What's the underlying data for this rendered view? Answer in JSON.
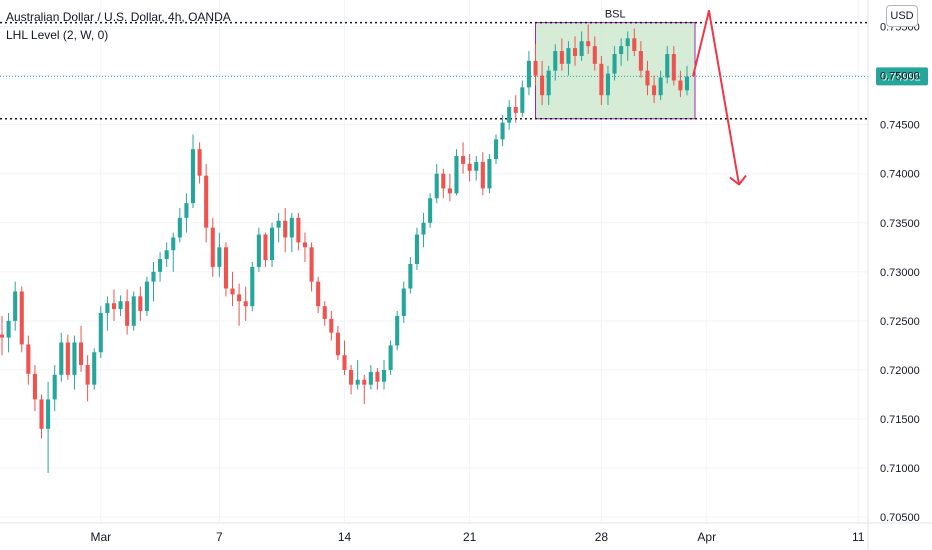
{
  "header": {
    "title": "Australian Dollar / U.S. Dollar, 4h, OANDA",
    "indicator": "LHL Level (2, W, 0)"
  },
  "currency_button": "USD",
  "colors": {
    "up": "#26a69a",
    "down": "#ef5350",
    "zone_fill": "#c8e6c9",
    "zone_border": "#9c27b0",
    "price_line": "#26a69a",
    "level_line": "#131722",
    "arrow": "#f23645",
    "grid": "#f0f3fa"
  },
  "chart_data": {
    "type": "candlestick",
    "symbol": "Australian Dollar / U.S. Dollar",
    "interval": "4h",
    "source": "OANDA",
    "y_axis_ticks": [
      "0.75500",
      "0.75000",
      "0.74500",
      "0.74000",
      "0.73500",
      "0.73000",
      "0.72500",
      "0.72000",
      "0.71500",
      "0.71000",
      "0.70500"
    ],
    "ylim": [
      0.7044,
      0.7575
    ],
    "x_axis_ticks": [
      "Mar",
      "7",
      "14",
      "21",
      "28",
      "Apr",
      "11"
    ],
    "current_price": "0.74992",
    "levels": [
      0.7554,
      0.7456
    ],
    "zone": {
      "label": "BSL",
      "top": 0.7554,
      "bottom": 0.7456
    },
    "projection_points": [
      [
        0.74992
      ],
      [
        0.7566
      ],
      [
        0.7389
      ]
    ],
    "candles_ohlc_approx": [
      [
        0.7236,
        0.7255,
        0.7215,
        0.7233
      ],
      [
        0.7233,
        0.7258,
        0.7218,
        0.725
      ],
      [
        0.725,
        0.729,
        0.724,
        0.728
      ],
      [
        0.728,
        0.7285,
        0.7218,
        0.7226
      ],
      [
        0.7226,
        0.7235,
        0.7185,
        0.7196
      ],
      [
        0.7196,
        0.7205,
        0.7158,
        0.717
      ],
      [
        0.717,
        0.7175,
        0.713,
        0.714
      ],
      [
        0.714,
        0.7188,
        0.7095,
        0.717
      ],
      [
        0.717,
        0.7205,
        0.7158,
        0.7195
      ],
      [
        0.7195,
        0.7238,
        0.7188,
        0.7228
      ],
      [
        0.7228,
        0.7236,
        0.719,
        0.7195
      ],
      [
        0.7195,
        0.7235,
        0.718,
        0.7228
      ],
      [
        0.7228,
        0.7245,
        0.7198,
        0.7205
      ],
      [
        0.7205,
        0.7215,
        0.7168,
        0.7185
      ],
      [
        0.7185,
        0.7222,
        0.718,
        0.7218
      ],
      [
        0.7218,
        0.7265,
        0.7212,
        0.7258
      ],
      [
        0.7258,
        0.7275,
        0.724,
        0.7268
      ],
      [
        0.7268,
        0.7282,
        0.725,
        0.7262
      ],
      [
        0.7262,
        0.7276,
        0.7255,
        0.727
      ],
      [
        0.727,
        0.7282,
        0.7236,
        0.7245
      ],
      [
        0.7245,
        0.728,
        0.724,
        0.7275
      ],
      [
        0.7275,
        0.7285,
        0.725,
        0.726
      ],
      [
        0.726,
        0.7295,
        0.7255,
        0.729
      ],
      [
        0.729,
        0.731,
        0.727,
        0.73
      ],
      [
        0.73,
        0.732,
        0.729,
        0.7313
      ],
      [
        0.7313,
        0.733,
        0.7305,
        0.7322
      ],
      [
        0.7322,
        0.734,
        0.73,
        0.7335
      ],
      [
        0.7335,
        0.7365,
        0.733,
        0.7355
      ],
      [
        0.7355,
        0.738,
        0.734,
        0.737
      ],
      [
        0.737,
        0.744,
        0.7365,
        0.7425
      ],
      [
        0.7425,
        0.7432,
        0.739,
        0.7398
      ],
      [
        0.7398,
        0.741,
        0.733,
        0.7345
      ],
      [
        0.7345,
        0.7355,
        0.7295,
        0.7305
      ],
      [
        0.7305,
        0.734,
        0.7295,
        0.7325
      ],
      [
        0.7325,
        0.733,
        0.7275,
        0.7283
      ],
      [
        0.7283,
        0.73,
        0.7265,
        0.7277
      ],
      [
        0.7277,
        0.7288,
        0.7245,
        0.727
      ],
      [
        0.727,
        0.7285,
        0.725,
        0.7265
      ],
      [
        0.7265,
        0.731,
        0.726,
        0.7305
      ],
      [
        0.7305,
        0.7345,
        0.73,
        0.7338
      ],
      [
        0.7338,
        0.734,
        0.7305,
        0.7312
      ],
      [
        0.7312,
        0.735,
        0.7305,
        0.7345
      ],
      [
        0.7345,
        0.736,
        0.733,
        0.7352
      ],
      [
        0.7352,
        0.7365,
        0.732,
        0.7335
      ],
      [
        0.7335,
        0.736,
        0.732,
        0.7355
      ],
      [
        0.7355,
        0.736,
        0.7322,
        0.733
      ],
      [
        0.733,
        0.734,
        0.731,
        0.7325
      ],
      [
        0.7325,
        0.733,
        0.728,
        0.729
      ],
      [
        0.729,
        0.7295,
        0.7258,
        0.7265
      ],
      [
        0.7265,
        0.727,
        0.7245,
        0.7252
      ],
      [
        0.7252,
        0.726,
        0.723,
        0.7238
      ],
      [
        0.7238,
        0.7245,
        0.721,
        0.7215
      ],
      [
        0.7215,
        0.723,
        0.7195,
        0.72
      ],
      [
        0.72,
        0.7205,
        0.7175,
        0.7185
      ],
      [
        0.7185,
        0.721,
        0.718,
        0.719
      ],
      [
        0.719,
        0.7195,
        0.7165,
        0.7185
      ],
      [
        0.7185,
        0.7205,
        0.718,
        0.7198
      ],
      [
        0.7198,
        0.7202,
        0.718,
        0.7188
      ],
      [
        0.7188,
        0.721,
        0.718,
        0.72
      ],
      [
        0.72,
        0.723,
        0.7195,
        0.7225
      ],
      [
        0.7225,
        0.726,
        0.722,
        0.7255
      ],
      [
        0.7255,
        0.729,
        0.7248,
        0.7283
      ],
      [
        0.7283,
        0.7315,
        0.7278,
        0.7308
      ],
      [
        0.7308,
        0.7345,
        0.7302,
        0.7338
      ],
      [
        0.7338,
        0.736,
        0.7325,
        0.735
      ],
      [
        0.735,
        0.738,
        0.7345,
        0.7375
      ],
      [
        0.7375,
        0.741,
        0.737,
        0.74
      ],
      [
        0.74,
        0.7405,
        0.7375,
        0.7385
      ],
      [
        0.7385,
        0.74,
        0.7372,
        0.738
      ],
      [
        0.738,
        0.7425,
        0.7378,
        0.7418
      ],
      [
        0.7418,
        0.7432,
        0.74,
        0.741
      ],
      [
        0.741,
        0.742,
        0.7392,
        0.7403
      ],
      [
        0.7403,
        0.7418,
        0.7393,
        0.7412
      ],
      [
        0.7412,
        0.7422,
        0.7378,
        0.7385
      ],
      [
        0.7385,
        0.742,
        0.738,
        0.7415
      ],
      [
        0.7415,
        0.744,
        0.741,
        0.7435
      ],
      [
        0.7435,
        0.746,
        0.7428,
        0.7452
      ],
      [
        0.7452,
        0.7475,
        0.7445,
        0.7468
      ],
      [
        0.7468,
        0.748,
        0.7452,
        0.7462
      ],
      [
        0.7462,
        0.7495,
        0.7458,
        0.7488
      ],
      [
        0.7488,
        0.7525,
        0.748,
        0.7515
      ],
      [
        0.7515,
        0.7532,
        0.749,
        0.75
      ],
      [
        0.75,
        0.7515,
        0.747,
        0.748
      ],
      [
        0.748,
        0.751,
        0.747,
        0.7505
      ],
      [
        0.7505,
        0.7532,
        0.7495,
        0.7525
      ],
      [
        0.7525,
        0.7538,
        0.7505,
        0.7512
      ],
      [
        0.7512,
        0.7535,
        0.75,
        0.7528
      ],
      [
        0.7528,
        0.754,
        0.751,
        0.752
      ],
      [
        0.752,
        0.7545,
        0.7515,
        0.7535
      ],
      [
        0.7535,
        0.7552,
        0.7522,
        0.753
      ],
      [
        0.753,
        0.754,
        0.7505,
        0.7512
      ],
      [
        0.7512,
        0.752,
        0.747,
        0.748
      ],
      [
        0.748,
        0.751,
        0.747,
        0.7502
      ],
      [
        0.7502,
        0.753,
        0.7495,
        0.7522
      ],
      [
        0.7522,
        0.7538,
        0.751,
        0.753
      ],
      [
        0.753,
        0.7545,
        0.7515,
        0.7538
      ],
      [
        0.7538,
        0.7548,
        0.752,
        0.7525
      ],
      [
        0.7525,
        0.7535,
        0.7498,
        0.7505
      ],
      [
        0.7505,
        0.7515,
        0.748,
        0.749
      ],
      [
        0.749,
        0.75,
        0.7472,
        0.748
      ],
      [
        0.748,
        0.7505,
        0.7475,
        0.7498
      ],
      [
        0.7498,
        0.753,
        0.7492,
        0.7522
      ],
      [
        0.7522,
        0.753,
        0.749,
        0.7495
      ],
      [
        0.7495,
        0.7505,
        0.7478,
        0.7485
      ],
      [
        0.7485,
        0.751,
        0.748,
        0.7499
      ]
    ]
  }
}
